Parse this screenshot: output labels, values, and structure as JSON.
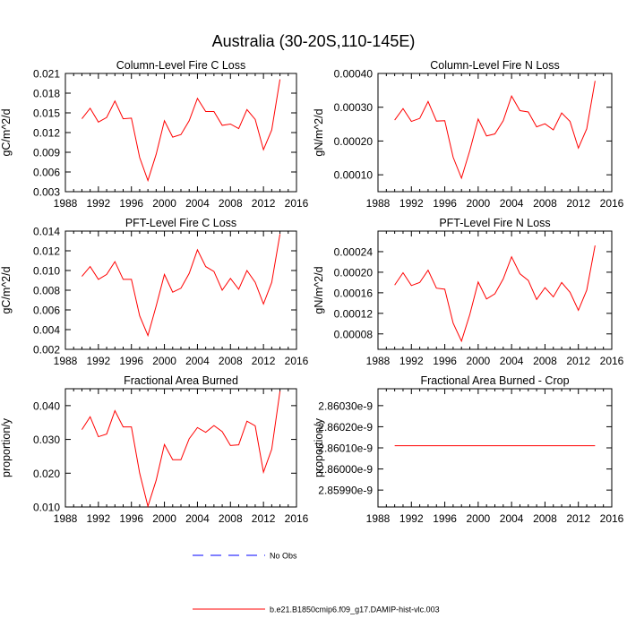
{
  "figure_title": "Australia (30-20S,110-145E)",
  "legend": [
    {
      "label": "No Obs",
      "color": "#0000ff",
      "dash": true
    },
    {
      "label": "b.e21.B1850cmip6.f09_g17.DAMIP-hist-vlc.003",
      "color": "#ff0000",
      "dash": false
    }
  ],
  "chart_data": [
    {
      "type": "line",
      "title": "Column-Level Fire C Loss",
      "ylabel": "gC/m^2/d",
      "xlim": [
        1988,
        2016
      ],
      "xticks": [
        "1988",
        "1992",
        "1996",
        "2000",
        "2004",
        "2008",
        "2012",
        "2016"
      ],
      "ylim": [
        0.003,
        0.021
      ],
      "yticks": [
        "0.003",
        "0.006",
        "0.009",
        "0.012",
        "0.015",
        "0.018",
        "0.021"
      ],
      "x": [
        1990,
        1991,
        1992,
        1993,
        1994,
        1995,
        1996,
        1997,
        1998,
        1999,
        2000,
        2001,
        2002,
        2003,
        2004,
        2005,
        2006,
        2007,
        2008,
        2009,
        2010,
        2011,
        2012,
        2013,
        2014
      ],
      "series": [
        {
          "color": "#ff0000",
          "values": [
            0.0141,
            0.0157,
            0.0136,
            0.0143,
            0.0168,
            0.0141,
            0.0142,
            0.0082,
            0.0047,
            0.0087,
            0.0138,
            0.0113,
            0.0117,
            0.0138,
            0.0172,
            0.0152,
            0.0152,
            0.0131,
            0.0133,
            0.0126,
            0.0155,
            0.014,
            0.0094,
            0.0124,
            0.0201
          ]
        }
      ]
    },
    {
      "type": "line",
      "title": "Column-Level Fire N Loss",
      "ylabel": "gN/m^2/d",
      "xlim": [
        1988,
        2016
      ],
      "xticks": [
        "1988",
        "1992",
        "1996",
        "2000",
        "2004",
        "2008",
        "2012",
        "2016"
      ],
      "ylim": [
        5e-05,
        0.0004
      ],
      "yticks": [
        "0.00010",
        "0.00020",
        "0.00030",
        "0.00040"
      ],
      "x": [
        1990,
        1991,
        1992,
        1993,
        1994,
        1995,
        1996,
        1997,
        1998,
        1999,
        2000,
        2001,
        2002,
        2003,
        2004,
        2005,
        2006,
        2007,
        2008,
        2009,
        2010,
        2011,
        2012,
        2013,
        2014
      ],
      "series": [
        {
          "color": "#ff0000",
          "values": [
            0.000262,
            0.000296,
            0.000258,
            0.000267,
            0.000317,
            0.000259,
            0.00026,
            0.000152,
            9e-05,
            0.000172,
            0.000265,
            0.000215,
            0.000221,
            0.00026,
            0.000333,
            0.00029,
            0.000286,
            0.000242,
            0.000251,
            0.000233,
            0.000283,
            0.000258,
            0.000179,
            0.000236,
            0.000378
          ]
        }
      ]
    },
    {
      "type": "line",
      "title": "PFT-Level Fire C Loss",
      "ylabel": "gC/m^2/d",
      "xlim": [
        1988,
        2016
      ],
      "xticks": [
        "1988",
        "1992",
        "1996",
        "2000",
        "2004",
        "2008",
        "2012",
        "2016"
      ],
      "ylim": [
        0.002,
        0.014
      ],
      "yticks": [
        "0.002",
        "0.004",
        "0.006",
        "0.008",
        "0.010",
        "0.012",
        "0.014"
      ],
      "x": [
        1990,
        1991,
        1992,
        1993,
        1994,
        1995,
        1996,
        1997,
        1998,
        1999,
        2000,
        2001,
        2002,
        2003,
        2004,
        2005,
        2006,
        2007,
        2008,
        2009,
        2010,
        2011,
        2012,
        2013,
        2014
      ],
      "series": [
        {
          "color": "#ff0000",
          "values": [
            0.0094,
            0.0104,
            0.0091,
            0.0096,
            0.0109,
            0.0091,
            0.0091,
            0.0054,
            0.0034,
            0.0064,
            0.0096,
            0.0078,
            0.0082,
            0.0097,
            0.0121,
            0.0104,
            0.0099,
            0.008,
            0.0092,
            0.0081,
            0.01,
            0.0088,
            0.0066,
            0.0088,
            0.0137
          ]
        }
      ]
    },
    {
      "type": "line",
      "title": "PFT-Level Fire N Loss",
      "ylabel": "gN/m^2/d",
      "xlim": [
        1988,
        2016
      ],
      "xticks": [
        "1988",
        "1992",
        "1996",
        "2000",
        "2004",
        "2008",
        "2012",
        "2016"
      ],
      "ylim": [
        5e-05,
        0.00028
      ],
      "yticks": [
        "0.00008",
        "0.00012",
        "0.00016",
        "0.00020",
        "0.00024"
      ],
      "x": [
        1990,
        1991,
        1992,
        1993,
        1994,
        1995,
        1996,
        1997,
        1998,
        1999,
        2000,
        2001,
        2002,
        2003,
        2004,
        2005,
        2006,
        2007,
        2008,
        2009,
        2010,
        2011,
        2012,
        2013,
        2014
      ],
      "series": [
        {
          "color": "#ff0000",
          "values": [
            0.000175,
            0.000199,
            0.000174,
            0.00018,
            0.000204,
            0.000169,
            0.000167,
            0.000101,
            6.6e-05,
            0.000118,
            0.000181,
            0.000148,
            0.000158,
            0.000187,
            0.00023,
            0.000197,
            0.000184,
            0.000147,
            0.00017,
            0.000152,
            0.00018,
            0.000161,
            0.000126,
            0.000165,
            0.000252
          ]
        }
      ]
    },
    {
      "type": "line",
      "title": "Fractional Area Burned",
      "ylabel": "proportion/y",
      "xlim": [
        1988,
        2016
      ],
      "xticks": [
        "1988",
        "1992",
        "1996",
        "2000",
        "2004",
        "2008",
        "2012",
        "2016"
      ],
      "ylim": [
        0.01,
        0.045
      ],
      "yticks": [
        "0.010",
        "0.020",
        "0.030",
        "0.040"
      ],
      "x": [
        1990,
        1991,
        1992,
        1993,
        1994,
        1995,
        1996,
        1997,
        1998,
        1999,
        2000,
        2001,
        2002,
        2003,
        2004,
        2005,
        2006,
        2007,
        2008,
        2009,
        2010,
        2011,
        2012,
        2013,
        2014
      ],
      "series": [
        {
          "color": "#ff0000",
          "values": [
            0.0329,
            0.0367,
            0.0308,
            0.0316,
            0.0385,
            0.0337,
            0.0337,
            0.02,
            0.0102,
            0.0179,
            0.0285,
            0.024,
            0.024,
            0.0302,
            0.0335,
            0.0321,
            0.0341,
            0.0323,
            0.0282,
            0.0284,
            0.0354,
            0.034,
            0.0203,
            0.0271,
            0.0443
          ]
        }
      ]
    },
    {
      "type": "line",
      "title": "Fractional Area Burned - Crop",
      "ylabel": "proportion/y",
      "xlim": [
        1988,
        2016
      ],
      "xticks": [
        "1988",
        "1992",
        "1996",
        "2000",
        "2004",
        "2008",
        "2012",
        "2016"
      ],
      "ylim": [
        2.85982e-09,
        2.86038e-09
      ],
      "yticks": [
        "2.85990e-9",
        "2.86000e-9",
        "2.86010e-9",
        "2.86020e-9",
        "2.86030e-9"
      ],
      "x": [
        1990,
        1991,
        1992,
        1993,
        1994,
        1995,
        1996,
        1997,
        1998,
        1999,
        2000,
        2001,
        2002,
        2003,
        2004,
        2005,
        2006,
        2007,
        2008,
        2009,
        2010,
        2011,
        2012,
        2013,
        2014
      ],
      "series": [
        {
          "color": "#ff0000",
          "values": [
            2.86011e-09,
            2.86011e-09,
            2.86011e-09,
            2.86011e-09,
            2.86011e-09,
            2.86011e-09,
            2.86011e-09,
            2.86011e-09,
            2.86011e-09,
            2.86011e-09,
            2.86011e-09,
            2.86011e-09,
            2.86011e-09,
            2.86011e-09,
            2.86011e-09,
            2.86011e-09,
            2.86011e-09,
            2.86011e-09,
            2.86011e-09,
            2.86011e-09,
            2.86011e-09,
            2.86011e-09,
            2.86011e-09,
            2.86011e-09,
            2.86011e-09
          ]
        }
      ]
    }
  ]
}
